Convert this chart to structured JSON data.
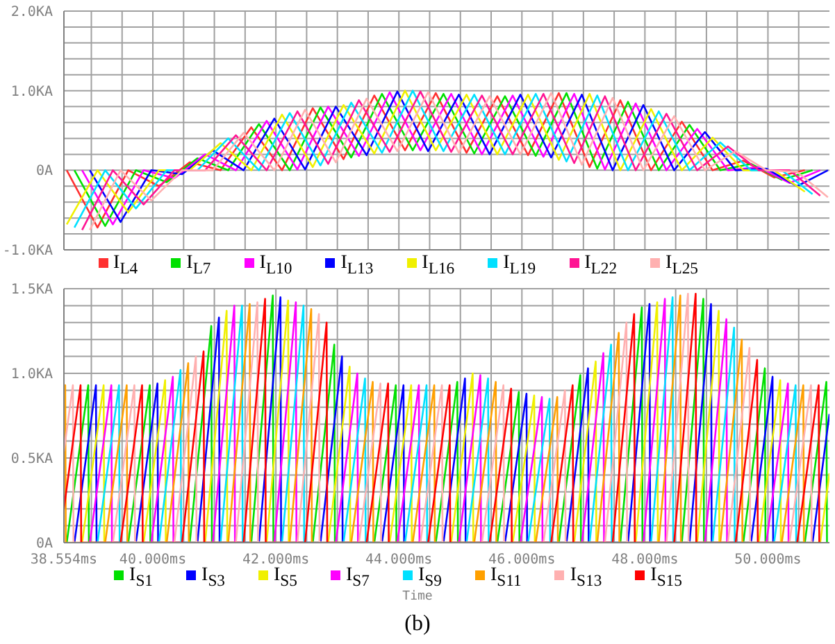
{
  "chart_data": [
    {
      "type": "line",
      "tick_labels": "y",
      "grid": true,
      "legend": "bottom",
      "xlim": [
        38.554,
        51.0
      ],
      "xticks": [
        {
          "value": 38.554,
          "label": null
        },
        {
          "value": 39,
          "label": null
        },
        {
          "value": 39.5,
          "label": null
        },
        {
          "value": 40,
          "label": null
        },
        {
          "value": 40.5,
          "label": null
        },
        {
          "value": 41,
          "label": null
        },
        {
          "value": 41.5,
          "label": null
        },
        {
          "value": 42,
          "label": null
        },
        {
          "value": 42.5,
          "label": null
        },
        {
          "value": 43,
          "label": null
        },
        {
          "value": 43.5,
          "label": null
        },
        {
          "value": 44,
          "label": null
        },
        {
          "value": 44.5,
          "label": null
        },
        {
          "value": 45,
          "label": null
        },
        {
          "value": 45.5,
          "label": null
        },
        {
          "value": 46,
          "label": null
        },
        {
          "value": 46.5,
          "label": null
        },
        {
          "value": 47,
          "label": null
        },
        {
          "value": 47.5,
          "label": null
        },
        {
          "value": 48,
          "label": null
        },
        {
          "value": 48.5,
          "label": null
        },
        {
          "value": 49,
          "label": null
        },
        {
          "value": 49.5,
          "label": null
        },
        {
          "value": 50,
          "label": null
        },
        {
          "value": 50.5,
          "label": null
        }
      ],
      "ylim": [
        -1.0,
        2.0
      ],
      "yticks": [
        {
          "value": -1.0,
          "label": "-1.0KA"
        },
        {
          "value": -0.8,
          "label": null
        },
        {
          "value": -0.6,
          "label": null
        },
        {
          "value": -0.4,
          "label": null
        },
        {
          "value": -0.2,
          "label": null
        },
        {
          "value": 0,
          "label": "0A"
        },
        {
          "value": 0.2,
          "label": null
        },
        {
          "value": 0.4,
          "label": null
        },
        {
          "value": 0.6,
          "label": null
        },
        {
          "value": 0.8,
          "label": null
        },
        {
          "value": 1.0,
          "label": "1.0KA"
        },
        {
          "value": 1.2,
          "label": null
        },
        {
          "value": 1.4,
          "label": null
        },
        {
          "value": 1.6,
          "label": null
        },
        {
          "value": 1.8,
          "label": null
        },
        {
          "value": 2.0,
          "label": "2.0KA"
        }
      ],
      "series": [
        {
          "name": "I$_{L4}$",
          "color": "#ff3030",
          "x": [
            38.6,
            39.1,
            39.6,
            40.1,
            40.6,
            41.1,
            41.6,
            42.1,
            42.6,
            43.1,
            43.6,
            44.1,
            44.6,
            45.1,
            45.6,
            46.1,
            46.6,
            47.1,
            47.6,
            48.1,
            48.6,
            49.1,
            49.6,
            50.1,
            50.6
          ],
          "values": [
            0,
            -0.72,
            0,
            -0.2,
            0.1,
            0,
            0.54,
            0,
            0.78,
            0.14,
            0.94,
            0.25,
            0.97,
            0.22,
            0.93,
            0.19,
            0.97,
            0.04,
            0.88,
            0,
            0.61,
            0,
            0.12,
            -0.09,
            0
          ]
        },
        {
          "name": "I$_{L7}$",
          "color": "#00e000",
          "x": [
            38.725,
            39.225,
            39.725,
            40.225,
            40.725,
            41.225,
            41.725,
            42.225,
            42.725,
            43.225,
            43.725,
            44.225,
            44.725,
            45.225,
            45.725,
            46.225,
            46.725,
            47.225,
            47.725,
            48.225,
            48.725,
            49.225,
            49.725,
            50.225,
            50.725
          ],
          "values": [
            0,
            -0.7,
            0,
            -0.15,
            0.15,
            0,
            0.58,
            0,
            0.79,
            0.16,
            0.96,
            0.25,
            0.96,
            0.21,
            0.93,
            0.18,
            0.97,
            0.02,
            0.86,
            0,
            0.57,
            0,
            0.08,
            -0.12,
            0
          ]
        },
        {
          "name": "I$_{L10}$",
          "color": "#ff00ff",
          "x": [
            38.85,
            39.35,
            39.85,
            40.35,
            40.85,
            41.35,
            41.85,
            42.35,
            42.85,
            43.35,
            43.85,
            44.35,
            44.85,
            45.35,
            45.85,
            46.35,
            46.85,
            47.35,
            47.85,
            48.35,
            48.85,
            49.35,
            49.85,
            50.35,
            50.85
          ],
          "values": [
            0,
            -0.68,
            0,
            -0.1,
            0.2,
            0,
            0.62,
            0.01,
            0.8,
            0.18,
            0.98,
            0.25,
            0.96,
            0.2,
            0.94,
            0.17,
            0.96,
            0.01,
            0.84,
            0,
            0.52,
            0,
            0.04,
            -0.16,
            0
          ]
        },
        {
          "name": "I$_{L13}$",
          "color": "#0000ff",
          "x": [
            38.975,
            39.475,
            39.975,
            40.475,
            40.975,
            41.475,
            41.975,
            42.475,
            42.975,
            43.475,
            43.975,
            44.475,
            44.975,
            45.475,
            45.975,
            46.475,
            46.975,
            47.475,
            47.975,
            48.475,
            48.975,
            49.475,
            49.975,
            50.475,
            50.975
          ],
          "values": [
            0,
            -0.65,
            0,
            -0.05,
            0.25,
            0,
            0.65,
            0.01,
            0.8,
            0.19,
            0.99,
            0.24,
            0.95,
            0.2,
            0.95,
            0.16,
            0.95,
            0,
            0.82,
            0,
            0.48,
            0,
            0.02,
            -0.2,
            0
          ]
        },
        {
          "name": "I$_{L16}$",
          "color": "#f0f000",
          "x": [
            38.6,
            39.1,
            39.6,
            40.1,
            40.6,
            41.1,
            41.6,
            42.1,
            42.6,
            43.1,
            43.6,
            44.1,
            44.6,
            45.1,
            45.6,
            46.1,
            46.6,
            47.1,
            47.6,
            48.1,
            48.6,
            49.1,
            49.6,
            50.1,
            50.6
          ],
          "values": [
            -0.68,
            0,
            -0.53,
            0,
            0,
            0.34,
            0,
            0.7,
            0.04,
            0.82,
            0.21,
            1.0,
            0.25,
            0.95,
            0.2,
            0.95,
            0.13,
            0.96,
            0,
            0.77,
            0,
            0.41,
            0,
            0,
            -0.27
          ]
        },
        {
          "name": "I$_{L19}$",
          "color": "#00e0ff",
          "x": [
            38.725,
            39.225,
            39.725,
            40.225,
            40.725,
            41.225,
            41.725,
            42.225,
            42.725,
            43.225,
            43.725,
            44.225,
            44.725,
            45.225,
            45.725,
            46.225,
            46.725,
            47.225,
            47.725,
            48.225,
            48.725,
            49.225,
            49.725,
            50.225,
            50.725
          ],
          "values": [
            -0.72,
            0,
            -0.48,
            0,
            0,
            0.4,
            0,
            0.72,
            0.06,
            0.85,
            0.22,
            1.0,
            0.24,
            0.95,
            0.2,
            0.96,
            0.11,
            0.94,
            0,
            0.74,
            0,
            0.35,
            0,
            0,
            -0.3
          ]
        },
        {
          "name": "I$_{L22}$",
          "color": "#ff1493",
          "x": [
            38.85,
            39.35,
            39.85,
            40.35,
            40.85,
            41.35,
            41.85,
            42.35,
            42.85,
            43.35,
            43.85,
            44.35,
            44.85,
            45.35,
            45.85,
            46.35,
            46.85,
            47.35,
            47.85,
            48.35,
            48.85,
            49.35,
            49.85,
            50.35,
            50.85
          ],
          "values": [
            -0.75,
            0,
            -0.43,
            0,
            0,
            0.44,
            0,
            0.74,
            0.08,
            0.88,
            0.23,
            0.99,
            0.23,
            0.94,
            0.2,
            0.96,
            0.09,
            0.93,
            0,
            0.71,
            0,
            0.3,
            0,
            0,
            -0.32
          ]
        },
        {
          "name": "I$_{L25}$",
          "color": "#ffb0b0",
          "x": [
            38.975,
            39.475,
            39.975,
            40.475,
            40.975,
            41.475,
            41.975,
            42.475,
            42.975,
            43.475,
            43.975,
            44.475,
            44.975,
            45.475,
            45.975,
            46.475,
            46.975,
            47.475,
            47.975,
            48.475,
            48.975,
            49.475,
            49.975,
            50.475,
            50.975
          ],
          "values": [
            -0.75,
            0,
            -0.38,
            0,
            0,
            0.47,
            0,
            0.76,
            0.1,
            0.9,
            0.24,
            0.98,
            0.22,
            0.93,
            0.2,
            0.97,
            0.07,
            0.91,
            0,
            0.68,
            0,
            0.24,
            0,
            -0.02,
            -0.34
          ]
        }
      ]
    },
    {
      "type": "line",
      "grid": true,
      "legend": "bottom",
      "xlabel": "Time",
      "annotations": [
        "(b)"
      ],
      "xlim": [
        38.554,
        51.0
      ],
      "xticks": [
        {
          "value": 38.554,
          "label": "38.554ms"
        },
        {
          "value": 39,
          "label": null
        },
        {
          "value": 39.5,
          "label": null
        },
        {
          "value": 40,
          "label": "40.000ms"
        },
        {
          "value": 40.5,
          "label": null
        },
        {
          "value": 41,
          "label": null
        },
        {
          "value": 41.5,
          "label": null
        },
        {
          "value": 42,
          "label": "42.000ms"
        },
        {
          "value": 42.5,
          "label": null
        },
        {
          "value": 43,
          "label": null
        },
        {
          "value": 43.5,
          "label": null
        },
        {
          "value": 44,
          "label": "44.000ms"
        },
        {
          "value": 44.5,
          "label": null
        },
        {
          "value": 45,
          "label": null
        },
        {
          "value": 45.5,
          "label": null
        },
        {
          "value": 46,
          "label": "46.000ms"
        },
        {
          "value": 46.5,
          "label": null
        },
        {
          "value": 47,
          "label": null
        },
        {
          "value": 47.5,
          "label": null
        },
        {
          "value": 48,
          "label": "48.000ms"
        },
        {
          "value": 48.5,
          "label": null
        },
        {
          "value": 49,
          "label": null
        },
        {
          "value": 49.5,
          "label": null
        },
        {
          "value": 50,
          "label": "50.000ms"
        },
        {
          "value": 50.5,
          "label": null
        }
      ],
      "ylim": [
        0,
        1.5
      ],
      "yticks": [
        {
          "value": 0,
          "label": "0A"
        },
        {
          "value": 0.1,
          "label": null
        },
        {
          "value": 0.2,
          "label": null
        },
        {
          "value": 0.3,
          "label": null
        },
        {
          "value": 0.4,
          "label": null
        },
        {
          "value": 0.5,
          "label": "0.5KA"
        },
        {
          "value": 0.6,
          "label": null
        },
        {
          "value": 0.7,
          "label": null
        },
        {
          "value": 0.8,
          "label": null
        },
        {
          "value": 0.9,
          "label": null
        },
        {
          "value": 1.0,
          "label": "1.0KA"
        },
        {
          "value": 1.1,
          "label": null
        },
        {
          "value": 1.2,
          "label": null
        },
        {
          "value": 1.3,
          "label": null
        },
        {
          "value": 1.4,
          "label": null
        },
        {
          "value": 1.5,
          "label": "1.5KA"
        }
      ],
      "series": [
        {
          "name": "I$_{S1}$",
          "color": "#00e000",
          "x": [
            38.6,
            38.95,
            38.96,
            39.6,
            39.95,
            39.96,
            40.6,
            40.95,
            40.96,
            41.6,
            41.95,
            41.96,
            42.6,
            42.95,
            42.96,
            43.6,
            43.95,
            43.96,
            44.6,
            44.95,
            44.96,
            45.6,
            45.95,
            45.96,
            46.6,
            46.95,
            46.96,
            47.6,
            47.95,
            47.96,
            48.6,
            48.95,
            48.96,
            49.6,
            49.95,
            49.96,
            50.6,
            50.95,
            50.96
          ],
          "values": [
            0,
            0.93,
            0,
            0,
            0.93,
            0,
            0,
            1.28,
            0,
            0,
            1.46,
            0,
            0,
            1.17,
            0,
            0,
            0.93,
            0,
            0,
            0.95,
            0,
            0,
            0.89,
            0,
            0,
            0.99,
            0,
            0,
            1.39,
            0,
            0,
            1.44,
            0,
            0,
            1.03,
            0,
            0,
            0.95,
            0
          ]
        },
        {
          "name": "I$_{S3}$",
          "color": "#0000ff",
          "x": [
            38.725,
            39.075,
            39.085,
            39.725,
            40.075,
            40.085,
            40.725,
            41.075,
            41.085,
            41.725,
            42.075,
            42.085,
            42.725,
            43.075,
            43.085,
            43.725,
            44.075,
            44.085,
            44.725,
            45.075,
            45.085,
            45.725,
            46.075,
            46.085,
            46.725,
            47.075,
            47.085,
            47.725,
            48.075,
            48.085,
            48.725,
            49.075,
            49.085,
            49.725,
            50.075,
            50.085,
            50.725,
            51.0
          ],
          "values": [
            0,
            0.93,
            0,
            0,
            0.94,
            0,
            0,
            1.33,
            0,
            0,
            1.45,
            0,
            0,
            1.1,
            0,
            0,
            0.93,
            0,
            0,
            0.97,
            0,
            0,
            0.88,
            0,
            0,
            1.03,
            0,
            0,
            1.41,
            0,
            0,
            1.41,
            0,
            0,
            0.98,
            0,
            0,
            0.76
          ]
        },
        {
          "name": "I$_{S5}$",
          "color": "#f0f000",
          "x": [
            38.85,
            39.2,
            39.21,
            39.85,
            40.2,
            40.21,
            40.85,
            41.2,
            41.21,
            41.85,
            42.2,
            42.21,
            42.85,
            43.2,
            43.21,
            43.85,
            44.2,
            44.21,
            44.85,
            45.2,
            45.21,
            45.85,
            46.2,
            46.21,
            46.85,
            47.2,
            47.21,
            47.85,
            48.2,
            48.21,
            48.85,
            49.2,
            49.21,
            49.85,
            50.2,
            50.21,
            50.85,
            51.0
          ],
          "values": [
            0,
            0.93,
            0,
            0,
            0.96,
            0,
            0,
            1.37,
            0,
            0,
            1.43,
            0,
            0,
            1.04,
            0,
            0,
            0.93,
            0,
            0,
            1.0,
            0,
            0,
            0.87,
            0,
            0,
            1.07,
            0,
            0,
            1.42,
            0,
            0,
            1.37,
            0,
            0,
            0.96,
            0,
            0,
            0.41
          ]
        },
        {
          "name": "I$_{S7}$",
          "color": "#ff00ff",
          "x": [
            38.975,
            39.325,
            39.335,
            39.975,
            40.325,
            40.335,
            40.975,
            41.325,
            41.335,
            41.975,
            42.325,
            42.335,
            42.975,
            43.325,
            43.335,
            43.975,
            44.325,
            44.335,
            44.975,
            45.325,
            45.335,
            45.975,
            46.325,
            46.335,
            46.975,
            47.325,
            47.335,
            47.975,
            48.325,
            48.335,
            48.975,
            49.325,
            49.335,
            49.975,
            50.325,
            50.335
          ],
          "values": [
            0,
            0.93,
            0,
            0,
            0.98,
            0,
            0,
            1.4,
            0,
            0,
            1.42,
            0,
            0,
            1.0,
            0,
            0,
            0.93,
            0,
            0,
            0.99,
            0,
            0,
            0.86,
            0,
            0,
            1.12,
            0,
            0,
            1.44,
            0,
            0,
            1.32,
            0,
            0,
            0.94,
            0
          ]
        },
        {
          "name": "I$_{S9}$",
          "color": "#00e0ff",
          "x": [
            39.1,
            39.45,
            39.46,
            40.1,
            40.45,
            40.46,
            41.1,
            41.45,
            41.46,
            42.1,
            42.45,
            42.46,
            43.1,
            43.45,
            43.46,
            44.1,
            44.45,
            44.46,
            45.1,
            45.45,
            45.46,
            46.1,
            46.45,
            46.46,
            47.1,
            47.45,
            47.46,
            48.1,
            48.45,
            48.46,
            49.1,
            49.45,
            49.46,
            50.1,
            50.45,
            50.46
          ],
          "values": [
            0,
            0.93,
            0,
            0,
            1.02,
            0,
            0,
            1.4,
            0,
            0,
            1.4,
            0,
            0,
            0.97,
            0,
            0,
            0.93,
            0,
            0,
            0.97,
            0,
            0,
            0.85,
            0,
            0,
            1.17,
            0,
            0,
            1.45,
            0,
            0,
            1.27,
            0,
            0,
            0.93,
            0
          ]
        },
        {
          "name": "I$_{S11}$",
          "color": "#ffa000",
          "x": [
            38.554,
            38.575,
            38.585,
            39.225,
            39.575,
            39.585,
            40.225,
            40.575,
            40.585,
            41.225,
            41.575,
            41.585,
            42.225,
            42.575,
            42.585,
            43.225,
            43.575,
            43.585,
            44.225,
            44.575,
            44.585,
            45.225,
            45.575,
            45.585,
            46.225,
            46.575,
            46.585,
            47.225,
            47.575,
            47.585,
            48.225,
            48.575,
            48.585,
            49.225,
            49.575,
            49.585,
            50.225,
            50.575,
            50.585
          ],
          "values": [
            0.87,
            0.93,
            0,
            0,
            0.93,
            0,
            0,
            1.06,
            0,
            0,
            1.41,
            0,
            0,
            1.38,
            0,
            0,
            0.95,
            0,
            0,
            0.93,
            0,
            0,
            0.95,
            0,
            0,
            0.86,
            0,
            0,
            1.24,
            0,
            0,
            1.46,
            0,
            0,
            1.2,
            0,
            0,
            0.93,
            0
          ]
        },
        {
          "name": "I$_{S13}$",
          "color": "#ffb0b0",
          "x": [
            38.554,
            38.7,
            38.71,
            39.35,
            39.7,
            39.71,
            40.35,
            40.7,
            40.71,
            41.35,
            41.7,
            41.71,
            42.35,
            42.7,
            42.71,
            43.35,
            43.7,
            43.71,
            44.35,
            44.7,
            44.71,
            45.35,
            45.7,
            45.71,
            46.35,
            46.7,
            46.71,
            47.35,
            47.7,
            47.71,
            48.35,
            48.7,
            48.71,
            49.35,
            49.7,
            49.71,
            50.35,
            50.7,
            50.71
          ],
          "values": [
            0.54,
            0.93,
            0,
            0,
            0.93,
            0,
            0,
            1.1,
            0,
            0,
            1.42,
            0,
            0,
            1.35,
            0,
            0,
            0.94,
            0,
            0,
            0.93,
            0,
            0,
            0.93,
            0,
            0,
            0.9,
            0,
            0,
            1.3,
            0,
            0,
            1.47,
            0,
            0,
            1.15,
            0,
            0,
            0.93,
            0
          ]
        },
        {
          "name": "I$_{S15}$",
          "color": "#ff0000",
          "x": [
            38.554,
            38.825,
            38.835,
            39.475,
            39.825,
            39.835,
            40.475,
            40.825,
            40.835,
            41.475,
            41.825,
            41.835,
            42.475,
            42.825,
            42.835,
            43.475,
            43.825,
            43.835,
            44.475,
            44.825,
            44.835,
            45.475,
            45.825,
            45.835,
            46.475,
            46.825,
            46.835,
            47.475,
            47.825,
            47.835,
            48.475,
            48.825,
            48.835,
            49.475,
            49.825,
            49.835,
            50.475,
            50.825,
            50.835
          ],
          "values": [
            0.2,
            0.93,
            0,
            0,
            0.93,
            0,
            0,
            1.13,
            0,
            0,
            1.44,
            0,
            0,
            1.3,
            0,
            0,
            0.94,
            0,
            0,
            0.93,
            0,
            0,
            0.91,
            0,
            0,
            0.93,
            0,
            0,
            1.35,
            0,
            0,
            1.47,
            0,
            0,
            1.08,
            0,
            0,
            0.93,
            0
          ]
        }
      ]
    }
  ]
}
